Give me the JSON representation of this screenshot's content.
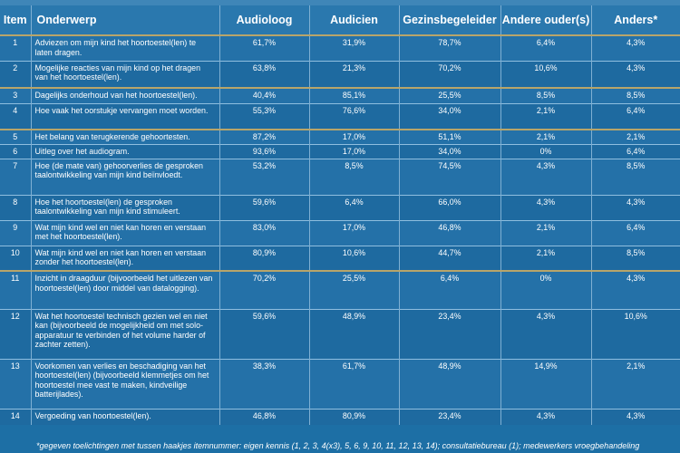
{
  "table": {
    "headers": {
      "item": "Item",
      "onderwerp": "Onderwerp",
      "audioloog": "Audioloog",
      "audicien": "Audicien",
      "gezinsbegeleider": "Gezinsbegeleider",
      "andere_ouders": "Andere ouder(s)",
      "anders": "Anders*"
    },
    "rows": [
      {
        "item": "1",
        "onderwerp": "Adviezen om mijn kind het hoortoestel(len) te laten dragen.",
        "audioloog": "61,7%",
        "audicien": "31,9%",
        "gezinsbegeleider": "78,7%",
        "andere_ouders": "6,4%",
        "anders": "4,3%"
      },
      {
        "item": "2",
        "onderwerp": "Mogelijke reacties van mijn kind op het dragen van het hoortoestel(len).",
        "audioloog": "63,8%",
        "audicien": "21,3%",
        "gezinsbegeleider": "70,2%",
        "andere_ouders": "10,6%",
        "anders": "4,3%"
      },
      {
        "item": "3",
        "onderwerp": "Dagelijks onderhoud van het hoortoestel(len).",
        "audioloog": "40,4%",
        "audicien": "85,1%",
        "gezinsbegeleider": "25,5%",
        "andere_ouders": "8,5%",
        "anders": "8,5%"
      },
      {
        "item": "4",
        "onderwerp": "Hoe vaak het oorstukje vervangen moet worden.",
        "audioloog": "55,3%",
        "audicien": "76,6%",
        "gezinsbegeleider": "34,0%",
        "andere_ouders": "2,1%",
        "anders": "6,4%"
      },
      {
        "item": "5",
        "onderwerp": "Het belang van terugkerende gehoortesten.",
        "audioloog": "87,2%",
        "audicien": "17,0%",
        "gezinsbegeleider": "51,1%",
        "andere_ouders": "2,1%",
        "anders": "2,1%"
      },
      {
        "item": "6",
        "onderwerp": "Uitleg over het audiogram.",
        "audioloog": "93,6%",
        "audicien": "17,0%",
        "gezinsbegeleider": "34,0%",
        "andere_ouders": "0%",
        "anders": "6,4%"
      },
      {
        "item": "7",
        "onderwerp": "Hoe (de mate van) gehoorverlies de gesproken taalontwikkeling van mijn kind beïnvloedt.",
        "audioloog": "53,2%",
        "audicien": "8,5%",
        "gezinsbegeleider": "74,5%",
        "andere_ouders": "4,3%",
        "anders": "8,5%"
      },
      {
        "item": "8",
        "onderwerp": "Hoe het hoortoestel(len) de gesproken taalontwikkeling van mijn kind stimuleert.",
        "audioloog": "59,6%",
        "audicien": "6,4%",
        "gezinsbegeleider": "66,0%",
        "andere_ouders": "4,3%",
        "anders": "4,3%"
      },
      {
        "item": "9",
        "onderwerp": "Wat mijn kind wel en niet kan horen en verstaan met het hoortoestel(len).",
        "audioloog": "83,0%",
        "audicien": "17,0%",
        "gezinsbegeleider": "46,8%",
        "andere_ouders": "2,1%",
        "anders": "6,4%"
      },
      {
        "item": "10",
        "onderwerp": "Wat mijn kind wel en niet kan horen en verstaan zonder het hoortoestel(len).",
        "audioloog": "80,9%",
        "audicien": "10,6%",
        "gezinsbegeleider": "44,7%",
        "andere_ouders": "2,1%",
        "anders": "8,5%"
      },
      {
        "item": "11",
        "onderwerp": "Inzicht in draagduur (bijvoorbeeld het uitlezen van hoortoestel(len) door middel van datalogging).",
        "audioloog": "70,2%",
        "audicien": "25,5%",
        "gezinsbegeleider": "6,4%",
        "andere_ouders": "0%",
        "anders": "4,3%"
      },
      {
        "item": "12",
        "onderwerp": "Wat het hoortoestel technisch gezien wel en niet kan (bijvoorbeeld de mogelijkheid om met solo-apparatuur te verbinden of het volume harder of zachter zetten).",
        "audioloog": "59,6%",
        "audicien": "48,9%",
        "gezinsbegeleider": "23,4%",
        "andere_ouders": "4,3%",
        "anders": "10,6%"
      },
      {
        "item": "13",
        "onderwerp": "Voorkomen van verlies en beschadiging van het hoortoestel(len) (bijvoorbeeld klemmetjes om het hoortoestel mee vast te maken, kindveilige batterijlades).",
        "audioloog": "38,3%",
        "audicien": "61,7%",
        "gezinsbegeleider": "48,9%",
        "andere_ouders": "14,9%",
        "anders": "2,1%"
      },
      {
        "item": "14",
        "onderwerp": "Vergoeding van hoortoestel(len).",
        "audioloog": "46,8%",
        "audicien": "80,9%",
        "gezinsbegeleider": "23,4%",
        "andere_ouders": "4,3%",
        "anders": "4,3%"
      }
    ]
  },
  "footnote": "*gegeven toelichtingen met tussen haakjes itemnummer: eigen kennis (1, 2, 3, 4(x3), 5, 6, 9, 10, 11, 12, 13, 14); consultatiebureau (1); medewerkers vroegbehandeling"
}
